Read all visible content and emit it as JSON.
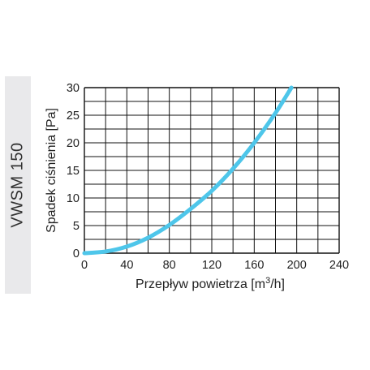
{
  "model_label": "VWSM 150",
  "chart_data": {
    "type": "line",
    "title": "",
    "xlabel": "Przepływ powietrza [m³/h]",
    "ylabel": "Spadek ciśnienia [Pa]",
    "xlim": [
      0,
      240
    ],
    "ylim": [
      0,
      30
    ],
    "x_ticks": [
      0,
      40,
      80,
      120,
      160,
      200,
      240
    ],
    "y_ticks": [
      0,
      5,
      10,
      15,
      20,
      25,
      30
    ],
    "grid": true,
    "curve_color": "#4ec6ea",
    "series": [
      {
        "x": [
          0,
          20,
          40,
          60,
          80,
          100,
          120,
          140,
          160,
          180,
          195
        ],
        "values": [
          0,
          0.3,
          1.2,
          2.8,
          5.1,
          8.0,
          11.3,
          15.3,
          20.0,
          25.4,
          30.0
        ]
      }
    ]
  }
}
